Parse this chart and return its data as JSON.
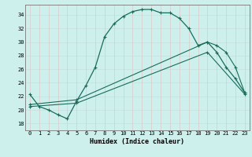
{
  "xlabel": "Humidex (Indice chaleur)",
  "ylabel": "",
  "bg_color": "#cdf0ed",
  "line_color": "#1a6b5a",
  "xlim": [
    -0.5,
    23.5
  ],
  "ylim": [
    17.0,
    35.5
  ],
  "xticks": [
    0,
    1,
    2,
    3,
    4,
    5,
    6,
    7,
    8,
    9,
    10,
    11,
    12,
    13,
    14,
    15,
    16,
    17,
    18,
    19,
    20,
    21,
    22,
    23
  ],
  "yticks": [
    18,
    20,
    22,
    24,
    26,
    28,
    30,
    32,
    34
  ],
  "series1_x": [
    0,
    1,
    2,
    3,
    4,
    5,
    6,
    7,
    8,
    9,
    10,
    11,
    12,
    13,
    14,
    15,
    16,
    17,
    18,
    19,
    20,
    21,
    22,
    23
  ],
  "series1_y": [
    22.3,
    20.5,
    20.0,
    19.3,
    18.7,
    21.3,
    23.6,
    26.3,
    30.8,
    32.7,
    33.8,
    34.5,
    34.8,
    34.8,
    34.3,
    34.3,
    33.5,
    32.0,
    29.5,
    30.0,
    28.5,
    26.3,
    24.6,
    22.5
  ],
  "series2_x": [
    0,
    5,
    19,
    20,
    21,
    22,
    23
  ],
  "series2_y": [
    20.8,
    21.5,
    30.0,
    29.5,
    28.5,
    26.3,
    22.5
  ],
  "series3_x": [
    0,
    5,
    19,
    23
  ],
  "series3_y": [
    20.5,
    21.0,
    28.5,
    22.3
  ]
}
